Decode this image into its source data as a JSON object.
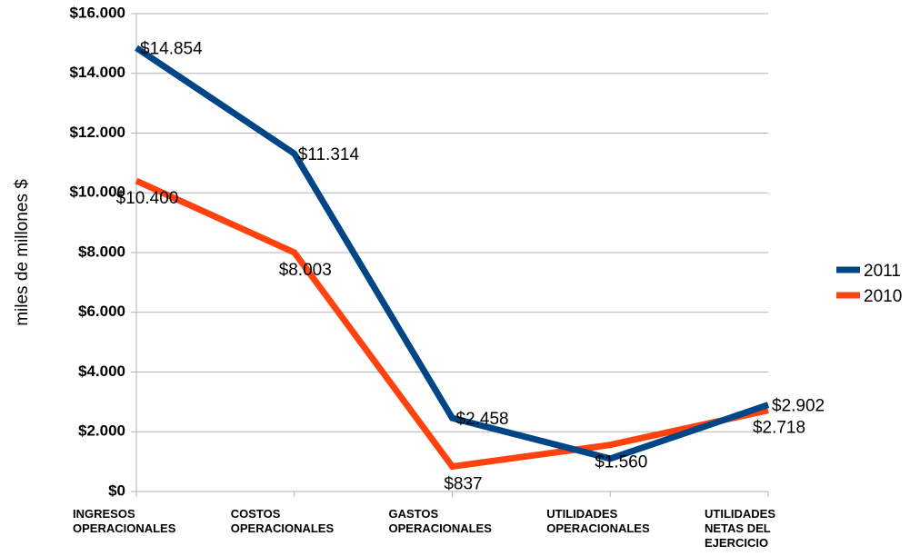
{
  "chart_data": {
    "type": "line",
    "y_label": "miles de millones $",
    "categories": [
      "INGRESOS\nOPERACIONALES",
      "COSTOS\nOPERACIONALES",
      "GASTOS\nOPERACIONALES",
      "UTILIDADES\nOPERACIONALES",
      "UTILIDADES\nNETAS DEL\nEJERCICIO"
    ],
    "series": [
      {
        "name": "2011",
        "color": "#004586",
        "values": [
          14854,
          11314,
          2458,
          1100,
          2902
        ],
        "value_labels": [
          "$14.854",
          "$11.314",
          "$2.458",
          null,
          "$2.902"
        ]
      },
      {
        "name": "2010",
        "color": "#ff420e",
        "values": [
          10400,
          8003,
          837,
          1560,
          2718
        ],
        "value_labels": [
          "$10.400",
          "$8.003",
          "$837",
          "$1.560",
          "$2.718"
        ]
      }
    ],
    "ylim": [
      0,
      16000
    ],
    "yticks": [
      {
        "value": 0,
        "label": "$0"
      },
      {
        "value": 2000,
        "label": "$2.000"
      },
      {
        "value": 4000,
        "label": "$4.000"
      },
      {
        "value": 6000,
        "label": "$6.000"
      },
      {
        "value": 8000,
        "label": "$8.000"
      },
      {
        "value": 10000,
        "label": "$10.000"
      },
      {
        "value": 12000,
        "label": "$12.000"
      },
      {
        "value": 14000,
        "label": "$14.000"
      },
      {
        "value": 16000,
        "label": "$16.000"
      }
    ],
    "grid": true,
    "legend": "right"
  }
}
